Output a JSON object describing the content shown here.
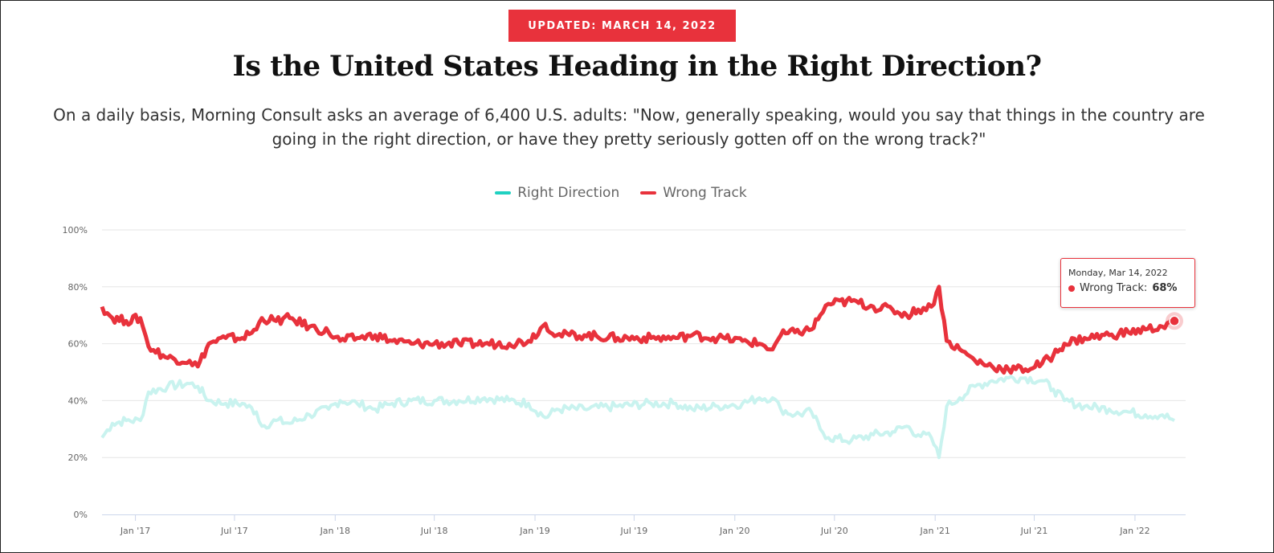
{
  "badge": "UPDATED: MARCH 14, 2022",
  "title": "Is the United States Heading in the Right Direction?",
  "subtitle": "On a daily basis, Morning Consult asks an average of 6,400 U.S. adults: \"Now, generally speaking, would you say that things in the country are going in the right direction, or have they pretty seriously gotten off on the wrong track?\"",
  "legend": [
    {
      "label": "Right Direction",
      "color": "#1fd1c1"
    },
    {
      "label": "Wrong Track",
      "color": "#e8323c"
    }
  ],
  "tooltip": {
    "date": "Monday, Mar 14, 2022",
    "series": "Wrong Track: ",
    "value": "68%"
  },
  "chart_data": {
    "type": "line",
    "ylim": [
      0,
      100
    ],
    "y_ticks": [
      "0%",
      "20%",
      "40%",
      "60%",
      "80%",
      "100%"
    ],
    "x_ticks": [
      "Jan '17",
      "Jul '17",
      "Jan '18",
      "Jul '18",
      "Jan '19",
      "Jul '19",
      "Jan '20",
      "Jul '20",
      "Jan '21",
      "Jul '21",
      "Jan '22"
    ],
    "x_range": [
      "2016-11-01",
      "2022-03-14"
    ],
    "grid": true,
    "legend_position": "top-center",
    "series": [
      {
        "name": "Right Direction",
        "color": "#1fd1c1",
        "points": [
          [
            "2016-11-01",
            27
          ],
          [
            "2016-11-20",
            32
          ],
          [
            "2016-12-15",
            33
          ],
          [
            "2017-01-10",
            33
          ],
          [
            "2017-01-25",
            43
          ],
          [
            "2017-03-01",
            45
          ],
          [
            "2017-04-10",
            46
          ],
          [
            "2017-04-25",
            45
          ],
          [
            "2017-05-15",
            40
          ],
          [
            "2017-06-15",
            39
          ],
          [
            "2017-07-15",
            39
          ],
          [
            "2017-08-10",
            36
          ],
          [
            "2017-08-20",
            31
          ],
          [
            "2017-09-15",
            33
          ],
          [
            "2017-10-10",
            32
          ],
          [
            "2017-11-15",
            35
          ],
          [
            "2017-12-20",
            37
          ],
          [
            "2018-01-10",
            40
          ],
          [
            "2018-02-10",
            39
          ],
          [
            "2018-03-15",
            37
          ],
          [
            "2018-04-15",
            39
          ],
          [
            "2018-05-20",
            40
          ],
          [
            "2018-07-01",
            40
          ],
          [
            "2018-08-15",
            40
          ],
          [
            "2018-10-01",
            41
          ],
          [
            "2018-11-15",
            40
          ],
          [
            "2018-12-20",
            39
          ],
          [
            "2019-01-20",
            34
          ],
          [
            "2019-02-10",
            37
          ],
          [
            "2019-04-01",
            37
          ],
          [
            "2019-06-01",
            38
          ],
          [
            "2019-08-01",
            39
          ],
          [
            "2019-09-15",
            39
          ],
          [
            "2019-10-15",
            37
          ],
          [
            "2019-12-01",
            38
          ],
          [
            "2020-01-15",
            39
          ],
          [
            "2020-02-15",
            41
          ],
          [
            "2020-03-10",
            41
          ],
          [
            "2020-03-25",
            37
          ],
          [
            "2020-04-20",
            35
          ],
          [
            "2020-05-20",
            36
          ],
          [
            "2020-06-05",
            30
          ],
          [
            "2020-06-20",
            27
          ],
          [
            "2020-08-01",
            26
          ],
          [
            "2020-09-10",
            28
          ],
          [
            "2020-10-15",
            29
          ],
          [
            "2020-11-10",
            31
          ],
          [
            "2020-12-01",
            28
          ],
          [
            "2020-12-25",
            27
          ],
          [
            "2021-01-08",
            20
          ],
          [
            "2021-01-22",
            38
          ],
          [
            "2021-02-15",
            41
          ],
          [
            "2021-03-15",
            45
          ],
          [
            "2021-04-15",
            47
          ],
          [
            "2021-05-15",
            48
          ],
          [
            "2021-06-15",
            48
          ],
          [
            "2021-07-15",
            47
          ],
          [
            "2021-08-05",
            44
          ],
          [
            "2021-08-25",
            40
          ],
          [
            "2021-10-01",
            38
          ],
          [
            "2021-11-15",
            37
          ],
          [
            "2021-12-20",
            36
          ],
          [
            "2022-01-20",
            35
          ],
          [
            "2022-02-20",
            35
          ],
          [
            "2022-03-14",
            33
          ]
        ]
      },
      {
        "name": "Wrong Track",
        "color": "#e8323c",
        "points": [
          [
            "2016-11-01",
            73
          ],
          [
            "2016-11-20",
            69
          ],
          [
            "2016-12-15",
            68
          ],
          [
            "2017-01-10",
            69
          ],
          [
            "2017-01-25",
            59
          ],
          [
            "2017-03-01",
            55
          ],
          [
            "2017-04-10",
            54
          ],
          [
            "2017-04-25",
            52
          ],
          [
            "2017-05-15",
            60
          ],
          [
            "2017-06-15",
            62
          ],
          [
            "2017-07-15",
            62
          ],
          [
            "2017-08-10",
            65
          ],
          [
            "2017-08-20",
            69
          ],
          [
            "2017-09-15",
            68
          ],
          [
            "2017-10-10",
            69
          ],
          [
            "2017-11-15",
            66
          ],
          [
            "2017-12-20",
            64
          ],
          [
            "2018-01-10",
            61
          ],
          [
            "2018-02-10",
            62
          ],
          [
            "2018-03-15",
            63
          ],
          [
            "2018-04-15",
            61
          ],
          [
            "2018-05-20",
            60
          ],
          [
            "2018-07-01",
            60
          ],
          [
            "2018-08-15",
            60
          ],
          [
            "2018-10-01",
            60
          ],
          [
            "2018-11-15",
            60
          ],
          [
            "2018-12-20",
            61
          ],
          [
            "2019-01-20",
            67
          ],
          [
            "2019-02-10",
            63
          ],
          [
            "2019-04-01",
            63
          ],
          [
            "2019-06-01",
            62
          ],
          [
            "2019-08-01",
            62
          ],
          [
            "2019-09-15",
            62
          ],
          [
            "2019-10-15",
            63
          ],
          [
            "2019-12-01",
            62
          ],
          [
            "2020-01-15",
            61
          ],
          [
            "2020-02-15",
            60
          ],
          [
            "2020-03-10",
            58
          ],
          [
            "2020-03-25",
            63
          ],
          [
            "2020-04-20",
            64
          ],
          [
            "2020-05-20",
            65
          ],
          [
            "2020-06-05",
            70
          ],
          [
            "2020-06-20",
            74
          ],
          [
            "2020-08-01",
            75
          ],
          [
            "2020-09-10",
            73
          ],
          [
            "2020-10-15",
            72
          ],
          [
            "2020-11-10",
            70
          ],
          [
            "2020-12-01",
            72
          ],
          [
            "2020-12-25",
            73
          ],
          [
            "2021-01-08",
            80
          ],
          [
            "2021-01-22",
            61
          ],
          [
            "2021-02-15",
            58
          ],
          [
            "2021-03-15",
            54
          ],
          [
            "2021-04-15",
            52
          ],
          [
            "2021-05-15",
            51
          ],
          [
            "2021-06-15",
            51
          ],
          [
            "2021-07-15",
            53
          ],
          [
            "2021-08-05",
            56
          ],
          [
            "2021-08-25",
            60
          ],
          [
            "2021-10-01",
            62
          ],
          [
            "2021-11-15",
            63
          ],
          [
            "2021-12-20",
            64
          ],
          [
            "2022-01-20",
            65
          ],
          [
            "2022-02-20",
            66
          ],
          [
            "2022-03-14",
            68
          ]
        ]
      }
    ]
  }
}
